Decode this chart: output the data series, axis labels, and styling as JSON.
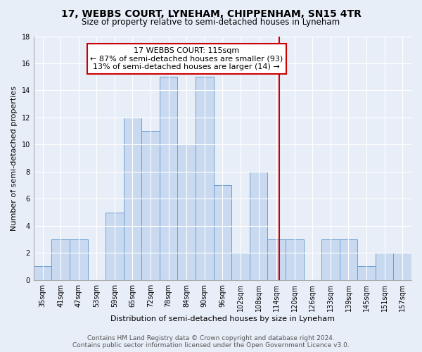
{
  "title": "17, WEBBS COURT, LYNEHAM, CHIPPENHAM, SN15 4TR",
  "subtitle": "Size of property relative to semi-detached houses in Lyneham",
  "xlabel": "Distribution of semi-detached houses by size in Lyneham",
  "ylabel": "Number of semi-detached properties",
  "categories": [
    "35sqm",
    "41sqm",
    "47sqm",
    "53sqm",
    "59sqm",
    "65sqm",
    "72sqm",
    "78sqm",
    "84sqm",
    "90sqm",
    "96sqm",
    "102sqm",
    "108sqm",
    "114sqm",
    "120sqm",
    "126sqm",
    "133sqm",
    "139sqm",
    "145sqm",
    "151sqm",
    "157sqm"
  ],
  "values": [
    1,
    3,
    3,
    0,
    5,
    12,
    11,
    15,
    10,
    15,
    7,
    2,
    8,
    3,
    3,
    0,
    3,
    3,
    1,
    2,
    2
  ],
  "bar_color": "#c9d9f0",
  "bar_edge_color": "#6a9fd0",
  "ylim": [
    0,
    18
  ],
  "yticks": [
    0,
    2,
    4,
    6,
    8,
    10,
    12,
    14,
    16,
    18
  ],
  "vline_color": "#cc0000",
  "annotation_text": "17 WEBBS COURT: 115sqm\n← 87% of semi-detached houses are smaller (93)\n13% of semi-detached houses are larger (14) →",
  "annotation_box_color": "#ffffff",
  "annotation_box_edge_color": "#cc0000",
  "footer_line1": "Contains HM Land Registry data © Crown copyright and database right 2024.",
  "footer_line2": "Contains public sector information licensed under the Open Government Licence v3.0.",
  "background_color": "#e8eef8",
  "plot_bg_color": "#e8eef8",
  "title_fontsize": 10,
  "subtitle_fontsize": 8.5,
  "tick_fontsize": 7,
  "ylabel_fontsize": 8,
  "xlabel_fontsize": 8,
  "footer_fontsize": 6.5,
  "annotation_fontsize": 8
}
